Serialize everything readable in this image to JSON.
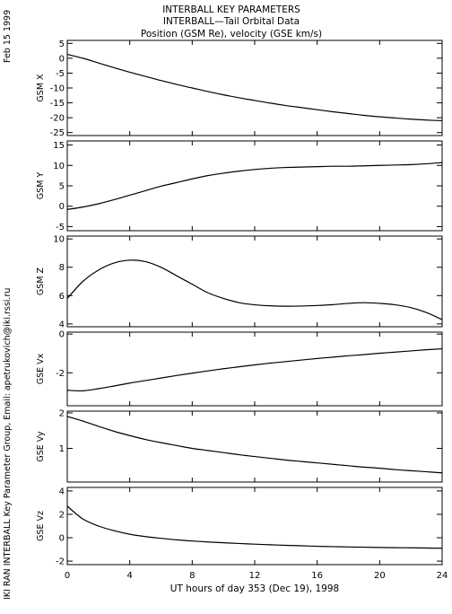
{
  "header": {
    "line1": "INTERBALL KEY PARAMETERS",
    "line2": "INTERBALL—Tail Orbital Data",
    "line3": "Position (GSM Re), velocity (GSE km/s)"
  },
  "side_left_top": "Feb 15 1999",
  "side_left_bottom": "IKI RAN INTERBALL Key Parameter Group, Email: apetrukovich@iki.rssi.ru",
  "chart_data": {
    "type": "line",
    "xlabel": "UT hours of day 353 (Dec 19), 1998",
    "xlim": [
      0,
      24
    ],
    "xticks": [
      0,
      4,
      8,
      12,
      16,
      20,
      24
    ],
    "x": [
      0,
      1,
      2,
      3,
      4,
      5,
      6,
      7,
      8,
      9,
      10,
      11,
      12,
      13,
      14,
      15,
      16,
      17,
      18,
      19,
      20,
      21,
      22,
      23,
      24
    ],
    "panels": [
      {
        "name": "GSM X",
        "ylim": [
          -26,
          6
        ],
        "yticks": [
          5,
          0,
          -5,
          -10,
          -15,
          -20,
          -25
        ],
        "values": [
          1.3,
          0.0,
          -1.6,
          -3.2,
          -4.7,
          -6.1,
          -7.5,
          -8.8,
          -10.0,
          -11.2,
          -12.3,
          -13.3,
          -14.2,
          -15.1,
          -15.9,
          -16.6,
          -17.3,
          -18.0,
          -18.6,
          -19.2,
          -19.7,
          -20.1,
          -20.5,
          -20.8,
          -21.0
        ]
      },
      {
        "name": "GSM Y",
        "ylim": [
          -6,
          16
        ],
        "yticks": [
          15,
          10,
          5,
          0,
          -5
        ],
        "values": [
          -0.8,
          -0.2,
          0.6,
          1.6,
          2.7,
          3.8,
          4.9,
          5.8,
          6.7,
          7.5,
          8.1,
          8.6,
          9.0,
          9.3,
          9.5,
          9.6,
          9.7,
          9.8,
          9.8,
          9.9,
          10.0,
          10.1,
          10.2,
          10.4,
          10.7
        ]
      },
      {
        "name": "GSM Z",
        "ylim": [
          3.8,
          10.2
        ],
        "yticks": [
          10,
          8,
          6,
          4
        ],
        "values": [
          5.8,
          7.0,
          7.8,
          8.3,
          8.5,
          8.4,
          8.0,
          7.4,
          6.8,
          6.2,
          5.8,
          5.5,
          5.35,
          5.28,
          5.25,
          5.26,
          5.3,
          5.36,
          5.45,
          5.5,
          5.45,
          5.35,
          5.15,
          4.8,
          4.3
        ]
      },
      {
        "name": "GSE Vx",
        "ylim": [
          -3.7,
          0.1
        ],
        "yticks": [
          0,
          -2
        ],
        "values": [
          -2.9,
          -2.93,
          -2.82,
          -2.68,
          -2.53,
          -2.4,
          -2.27,
          -2.14,
          -2.02,
          -1.9,
          -1.79,
          -1.69,
          -1.59,
          -1.5,
          -1.42,
          -1.34,
          -1.26,
          -1.19,
          -1.12,
          -1.06,
          -0.99,
          -0.93,
          -0.87,
          -0.81,
          -0.76
        ]
      },
      {
        "name": "GSE Vy",
        "ylim": [
          0.05,
          2.05
        ],
        "yticks": [
          2,
          1
        ],
        "values": [
          1.9,
          1.77,
          1.62,
          1.48,
          1.36,
          1.25,
          1.16,
          1.08,
          1.0,
          0.94,
          0.88,
          0.82,
          0.77,
          0.72,
          0.67,
          0.63,
          0.59,
          0.55,
          0.51,
          0.47,
          0.44,
          0.4,
          0.37,
          0.34,
          0.31
        ]
      },
      {
        "name": "GSE Vz",
        "ylim": [
          -2.3,
          4.3
        ],
        "yticks": [
          4,
          2,
          0,
          -2
        ],
        "values": [
          2.7,
          1.6,
          1.0,
          0.6,
          0.3,
          0.1,
          -0.05,
          -0.18,
          -0.28,
          -0.36,
          -0.43,
          -0.49,
          -0.55,
          -0.6,
          -0.65,
          -0.69,
          -0.73,
          -0.76,
          -0.79,
          -0.81,
          -0.83,
          -0.85,
          -0.86,
          -0.88,
          -0.9
        ]
      }
    ]
  }
}
